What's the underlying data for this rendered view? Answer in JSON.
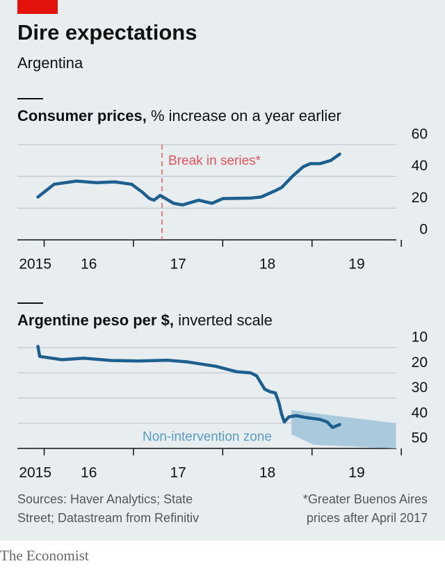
{
  "header": {
    "title": "Dire expectations",
    "subtitle": "Argentina"
  },
  "chart_data": [
    {
      "type": "line",
      "title_bold": "Consumer prices,",
      "title_rest": "% increase on a year earlier",
      "xlim": [
        2015.7,
        2020.1
      ],
      "xticks": [
        2016,
        2017,
        2018,
        2019,
        2020
      ],
      "xtick_labels": [
        {
          "value": 2015.9,
          "label": "2015"
        },
        {
          "value": 2016.5,
          "label": "16"
        },
        {
          "value": 2017.5,
          "label": "17"
        },
        {
          "value": 2018.5,
          "label": "18"
        },
        {
          "value": 2019.5,
          "label": "19"
        }
      ],
      "ylim": [
        0,
        60
      ],
      "yticks": [
        0,
        20,
        40,
        60
      ],
      "grid": true,
      "x": [
        2015.93,
        2016.11,
        2016.36,
        2016.59,
        2016.79,
        2016.98,
        2017.1,
        2017.18,
        2017.23,
        2017.3,
        2017.45,
        2017.55,
        2017.73,
        2017.88,
        2018.0,
        2018.31,
        2018.43,
        2018.59,
        2018.66,
        2018.78,
        2018.9,
        2018.98,
        2019.09,
        2019.21,
        2019.31
      ],
      "series": [
        {
          "color": "#1d5f8f",
          "values": [
            27,
            35,
            37,
            36,
            36.5,
            35,
            30,
            26,
            25,
            28,
            23,
            22,
            25,
            23,
            26,
            26.3,
            27,
            31,
            33,
            40,
            46,
            48,
            48,
            50,
            54
          ]
        }
      ],
      "break": {
        "x": 2017.32,
        "label": "Break in series*",
        "color": "#e0555b"
      }
    },
    {
      "type": "line",
      "title_bold": "Argentine peso per $,",
      "title_rest": "inverted scale",
      "inverted": true,
      "xlim": [
        2015.7,
        2020.1
      ],
      "xticks": [
        2016,
        2017,
        2018,
        2019,
        2020
      ],
      "xtick_labels": [
        {
          "value": 2015.9,
          "label": "2015"
        },
        {
          "value": 2016.5,
          "label": "16"
        },
        {
          "value": 2017.5,
          "label": "17"
        },
        {
          "value": 2018.5,
          "label": "18"
        },
        {
          "value": 2019.5,
          "label": "19"
        }
      ],
      "ylim": [
        10,
        50
      ],
      "yticks": [
        10,
        20,
        30,
        40,
        50
      ],
      "grid": true,
      "x": [
        2015.93,
        2015.95,
        2016.2,
        2016.44,
        2016.75,
        2017.06,
        2017.38,
        2017.61,
        2017.92,
        2018.16,
        2018.31,
        2018.38,
        2018.47,
        2018.53,
        2018.59,
        2018.63,
        2018.66,
        2018.69,
        2018.74,
        2018.82,
        2018.94,
        2019.09,
        2019.17,
        2019.23,
        2019.31
      ],
      "series": [
        {
          "color": "#1d5f8f",
          "values": [
            9.5,
            13.5,
            14.8,
            14.2,
            15.1,
            15.3,
            15,
            15.7,
            17.4,
            19.6,
            20,
            21.2,
            26.5,
            27.5,
            28,
            32,
            36.5,
            39.5,
            37.5,
            37,
            37.8,
            38.5,
            39.5,
            41.7,
            40.5
          ]
        }
      ],
      "zone": {
        "label": "Non-intervention zone",
        "color": "#a9c9dc",
        "label_color": "#5b9cc2",
        "x": [
          2018.77,
          2019.02,
          2019.94
        ],
        "lower": [
          34.8,
          36,
          40
        ],
        "upper": [
          44.4,
          48.6,
          50
        ]
      }
    }
  ],
  "notes": {
    "sources": [
      "Sources: Haver Analytics; State",
      "Street; Datastream from Refinitiv"
    ],
    "footnote": [
      "*Greater Buenos Aires",
      "prices after April 2017"
    ]
  },
  "brand": "The Economist"
}
